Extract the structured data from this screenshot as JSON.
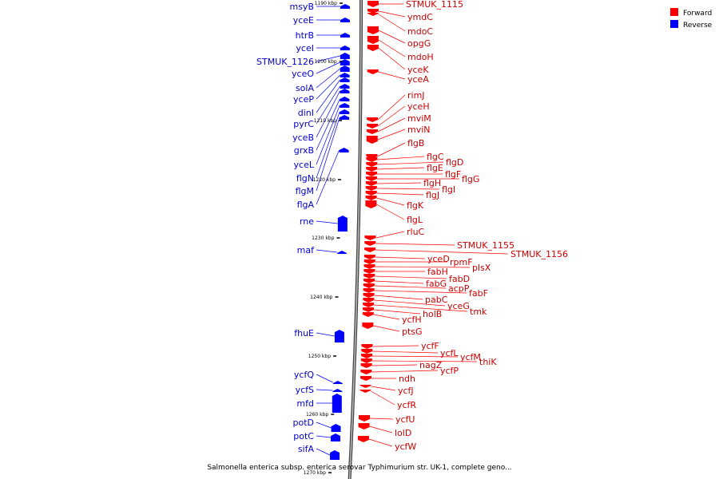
{
  "caption": "Salmonella enterica subsp. enterica serovar Typhimurium str. UK-1, complete geno...",
  "legend": [
    {
      "label": "Forward",
      "color": "#ff0000"
    },
    {
      "label": "Reverse",
      "color": "#0000ff"
    }
  ],
  "colors": {
    "forward": "#ff0000",
    "reverse": "#0000ff",
    "backbone": "#808080"
  },
  "ticks": [
    "1190 kbp",
    "1200 kbp",
    "1210 kbp",
    "1220 kbp",
    "1230 kbp",
    "1240 kbp",
    "1250 kbp",
    "1260 kbp",
    "1270 kbp"
  ],
  "reverse_genes": [
    "msyB",
    "yceE",
    "htrB",
    "yceI",
    "STMUK_1126",
    "yceO",
    "solA",
    "yceP",
    "dinI",
    "pyrC",
    "yceB",
    "grxB",
    "yceL",
    "flgN",
    "flgM",
    "flgA",
    "rne",
    "maf",
    "fhuE",
    "ycfQ",
    "ycfS",
    "mfd",
    "potD",
    "potC",
    "sifA"
  ],
  "forward_genes": [
    "STMUK_1115",
    "ymdC",
    "mdoC",
    "opgG",
    "mdoH",
    "yceK",
    "yceA",
    "rimJ",
    "yceH",
    "mviM",
    "mviN",
    "flgB",
    "flgC",
    "flgD",
    "flgE",
    "flgF",
    "flgG",
    "flgH",
    "flgI",
    "flgJ",
    "flgK",
    "flgL",
    "rluC",
    "STMUK_1155",
    "STMUK_1156",
    "yceD",
    "rpmF",
    "plsX",
    "fabH",
    "fabD",
    "fabG",
    "acpP",
    "fabF",
    "pabC",
    "yceG",
    "tmk",
    "holB",
    "ycfH",
    "ptsG",
    "ycfF",
    "ycfL",
    "ycfM",
    "thiK",
    "nagZ",
    "ycfP",
    "ndh",
    "ycfJ",
    "ycfR",
    "ycfU",
    "lolD",
    "ycfW"
  ]
}
